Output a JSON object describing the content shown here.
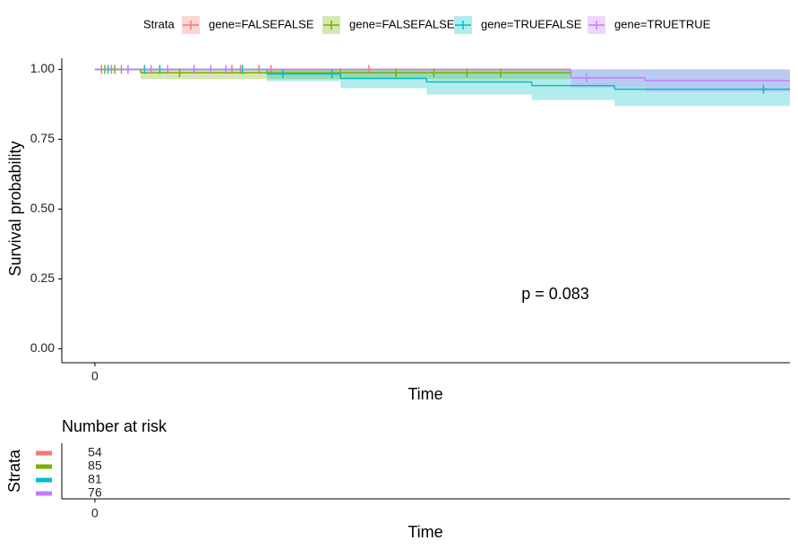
{
  "chart_data": [
    {
      "type": "km",
      "legend_title": "Strata",
      "xlabel": "Time",
      "ylabel": "Survival probability",
      "annotation": "p = 0.083",
      "xlim": [
        -5,
        105
      ],
      "xticks": [
        0
      ],
      "ylim": [
        -0.05,
        1.04
      ],
      "yticks": [
        {
          "value": 0,
          "label": "0.00"
        },
        {
          "value": 0.25,
          "label": "0.25"
        },
        {
          "value": 0.5,
          "label": "0.50"
        },
        {
          "value": 0.75,
          "label": "0.75"
        },
        {
          "value": 1,
          "label": "1.00"
        }
      ],
      "series": [
        {
          "name": "gene=FALSEFALSE",
          "color": "#F8766D",
          "x": [
            0,
            71.9
          ],
          "values": [
            1,
            1
          ],
          "lower": [
            1,
            1
          ],
          "upper": [
            1,
            1
          ],
          "censor_x": [
            1,
            2.5,
            4,
            20.7,
            22,
            24.8,
            26.6,
            41.4
          ],
          "censor_values": [
            1,
            1,
            1,
            1,
            1,
            1,
            1,
            1
          ]
        },
        {
          "name": "gene=FALSEFALSE",
          "color": "#7CAE00",
          "x": [
            0,
            6.9,
            71.9
          ],
          "values": [
            1,
            0.988,
            0.988
          ],
          "lower": [
            1,
            0.965,
            0.965
          ],
          "upper": [
            1,
            1,
            1
          ],
          "censor_x": [
            1.5,
            3,
            12.8,
            37.1,
            45.5,
            51.2,
            56.2,
            61.3
          ],
          "censor_values": [
            1,
            1,
            0.988,
            0.988,
            0.988,
            0.988,
            0.988,
            0.988
          ]
        },
        {
          "name": "gene=TRUEFALSE",
          "color": "#00BFC4",
          "x": [
            0,
            26,
            37.1,
            50.1,
            66,
            78.5,
            105
          ],
          "values": [
            1,
            0.984,
            0.968,
            0.955,
            0.942,
            0.929,
            0.929
          ],
          "lower": [
            1,
            0.958,
            0.933,
            0.91,
            0.891,
            0.869,
            0.869
          ],
          "upper": [
            1,
            1,
            1,
            1,
            1,
            1,
            1
          ],
          "censor_x": [
            2,
            7.5,
            9.8,
            22.3,
            28.4,
            35.8,
            101
          ],
          "censor_values": [
            1,
            1,
            1,
            1,
            0.984,
            0.984,
            0.929
          ]
        },
        {
          "name": "gene=TRUETRUE",
          "color": "#C77CFF",
          "x": [
            0,
            71.9,
            83.1,
            105
          ],
          "values": [
            1,
            0.97,
            0.96,
            0.96
          ],
          "lower": [
            1,
            0.935,
            0.92,
            0.92
          ],
          "upper": [
            1,
            1,
            1,
            1
          ],
          "censor_x": [
            5,
            8.5,
            11,
            15,
            17.5,
            19.8,
            74.3
          ],
          "censor_values": [
            1,
            1,
            1,
            1,
            1,
            1,
            0.97
          ]
        }
      ]
    },
    {
      "type": "risk-table",
      "title": "Number at risk",
      "ylabel": "Strata",
      "xlabel": "Time",
      "xlim": [
        -5,
        105
      ],
      "xticks": [
        0
      ],
      "series": [
        {
          "color": "#F8766D",
          "values": [
            54
          ]
        },
        {
          "color": "#7CAE00",
          "values": [
            85
          ]
        },
        {
          "color": "#00BFC4",
          "values": [
            81
          ]
        },
        {
          "color": "#C77CFF",
          "values": [
            76
          ]
        }
      ]
    }
  ]
}
